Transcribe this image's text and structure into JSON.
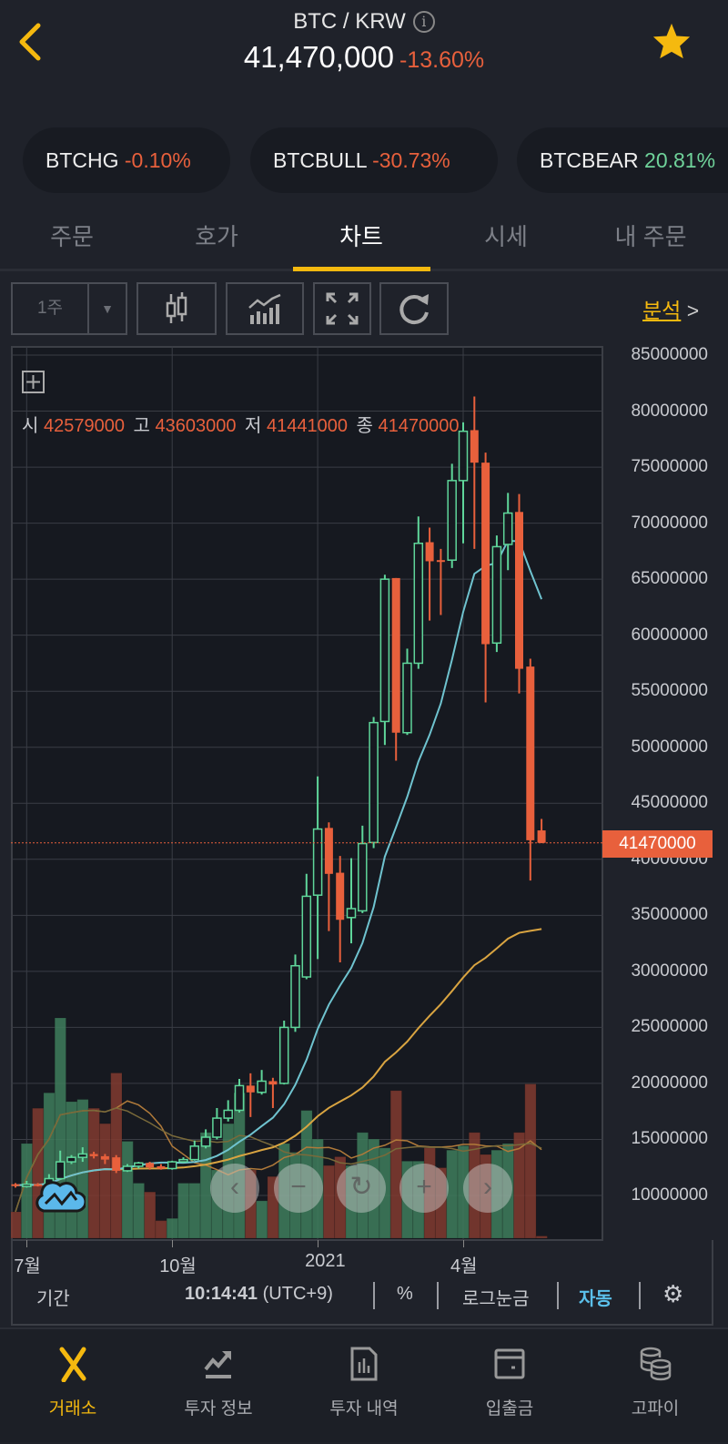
{
  "header": {
    "pair": "BTC / KRW",
    "price": "41,470,000",
    "change": "-13.60%",
    "info_icon": "info-icon",
    "back_icon": "chevron-left-icon",
    "favorite_icon": "star-icon"
  },
  "chips": [
    {
      "symbol": "BTCHG",
      "change": "-0.10%"
    },
    {
      "symbol": "BTCBULL",
      "change": "-30.73%"
    },
    {
      "symbol": "BTCBEAR",
      "change": "20.81%"
    }
  ],
  "tabs": [
    {
      "label": "주문"
    },
    {
      "label": "호가"
    },
    {
      "label": "차트",
      "active": true
    },
    {
      "label": "시세"
    },
    {
      "label": "내 주문"
    }
  ],
  "toolbar": {
    "interval": "1주",
    "analysis": "분석"
  },
  "ohlc": {
    "open_label": "시",
    "open": "42579000",
    "high_label": "고",
    "high": "43603000",
    "low_label": "저",
    "low": "41441000",
    "close_label": "종",
    "close": "41470000"
  },
  "current_price_label": "41470000",
  "bottom_bar": {
    "period": "기간",
    "time": "10:14:41",
    "tz": "(UTC+9)",
    "percent": "%",
    "log": "로그눈금",
    "auto": "자동"
  },
  "nav": [
    {
      "label": "거래소",
      "active": true
    },
    {
      "label": "투자 정보"
    },
    {
      "label": "투자 내역"
    },
    {
      "label": "입출금"
    },
    {
      "label": "고파이"
    }
  ],
  "colors": {
    "up": "#5fd69a",
    "down": "#e8603c",
    "accent": "#f5b90f",
    "auto": "#5bc0eb",
    "ma_short": "#6fc3cf",
    "ma_long": "#d9a441"
  },
  "chart_data": {
    "type": "candlestick",
    "interval": "1주",
    "y_ticks": [
      "85000000",
      "80000000",
      "75000000",
      "70000000",
      "65000000",
      "60000000",
      "55000000",
      "50000000",
      "45000000",
      "40000000",
      "35000000",
      "30000000",
      "25000000",
      "20000000",
      "15000000",
      "10000000"
    ],
    "ylim": [
      10000000,
      85000000
    ],
    "x_ticks": [
      {
        "label": "7월",
        "index": 1
      },
      {
        "label": "10월",
        "index": 14
      },
      {
        "label": "2021",
        "index": 27
      },
      {
        "label": "4월",
        "index": 40
      }
    ],
    "grid": true,
    "candles_million_krw": [
      [
        11.0,
        11.1,
        10.7,
        10.9
      ],
      [
        10.8,
        11.3,
        10.7,
        11.0
      ],
      [
        11.0,
        11.1,
        10.8,
        10.9
      ],
      [
        10.9,
        11.9,
        10.8,
        11.5
      ],
      [
        11.5,
        14.0,
        11.4,
        13.0
      ],
      [
        13.0,
        13.6,
        12.8,
        13.4
      ],
      [
        13.4,
        14.3,
        13.0,
        13.7
      ],
      [
        13.7,
        13.9,
        13.3,
        13.5
      ],
      [
        13.5,
        13.7,
        12.8,
        13.2
      ],
      [
        13.4,
        13.6,
        12.0,
        12.2
      ],
      [
        12.2,
        12.8,
        12.1,
        12.6
      ],
      [
        12.6,
        13.0,
        12.4,
        12.9
      ],
      [
        12.9,
        13.0,
        12.3,
        12.5
      ],
      [
        12.6,
        12.8,
        12.3,
        12.4
      ],
      [
        12.4,
        13.1,
        12.3,
        13.0
      ],
      [
        13.0,
        13.4,
        12.9,
        13.2
      ],
      [
        13.2,
        14.9,
        13.1,
        14.4
      ],
      [
        14.4,
        15.9,
        14.2,
        15.2
      ],
      [
        15.2,
        17.8,
        15.0,
        16.9
      ],
      [
        16.9,
        18.5,
        16.6,
        17.6
      ],
      [
        17.6,
        20.4,
        17.4,
        19.8
      ],
      [
        19.8,
        20.9,
        17.0,
        19.2
      ],
      [
        19.2,
        21.2,
        19.0,
        20.2
      ],
      [
        20.2,
        20.5,
        17.8,
        19.9
      ],
      [
        20.0,
        25.6,
        19.9,
        25.0
      ],
      [
        25.0,
        31.5,
        24.6,
        30.5
      ],
      [
        29.5,
        38.7,
        29.3,
        36.7
      ],
      [
        36.8,
        47.4,
        31.1,
        42.7
      ],
      [
        42.8,
        43.3,
        33.6,
        38.7
      ],
      [
        38.8,
        40.3,
        30.8,
        34.6
      ],
      [
        34.8,
        40.1,
        32.5,
        35.6
      ],
      [
        35.4,
        43.0,
        35.2,
        41.4
      ],
      [
        41.5,
        52.7,
        41.0,
        52.2
      ],
      [
        52.3,
        65.4,
        50.2,
        65.0
      ],
      [
        65.1,
        65.1,
        48.8,
        51.3
      ],
      [
        51.3,
        58.8,
        51.1,
        57.5
      ],
      [
        57.5,
        70.6,
        57.0,
        68.2
      ],
      [
        68.3,
        69.6,
        61.3,
        66.6
      ],
      [
        66.7,
        67.7,
        61.8,
        66.6
      ],
      [
        66.7,
        75.3,
        66.0,
        73.8
      ],
      [
        73.8,
        79.0,
        68.2,
        78.2
      ],
      [
        78.3,
        81.3,
        67.7,
        75.4
      ],
      [
        75.4,
        76.3,
        54.0,
        59.2
      ],
      [
        59.3,
        68.9,
        58.5,
        67.9
      ],
      [
        68.1,
        72.7,
        65.8,
        70.9
      ],
      [
        71.0,
        72.6,
        54.8,
        57.0
      ],
      [
        57.2,
        57.9,
        38.1,
        41.7
      ],
      [
        42.579,
        43.603,
        41.441,
        41.47
      ]
    ],
    "volume_relative": [
      12,
      43,
      59,
      66,
      100,
      62,
      63,
      59,
      52,
      75,
      44,
      25,
      21,
      8,
      9,
      25,
      25,
      48,
      31,
      52,
      66,
      31,
      17,
      28,
      43,
      39,
      58,
      45,
      33,
      37,
      33,
      48,
      45,
      41,
      67,
      35,
      35,
      41,
      32,
      40,
      42,
      48,
      38,
      40,
      43,
      48,
      70,
      1
    ],
    "current_price": 41470000
  }
}
